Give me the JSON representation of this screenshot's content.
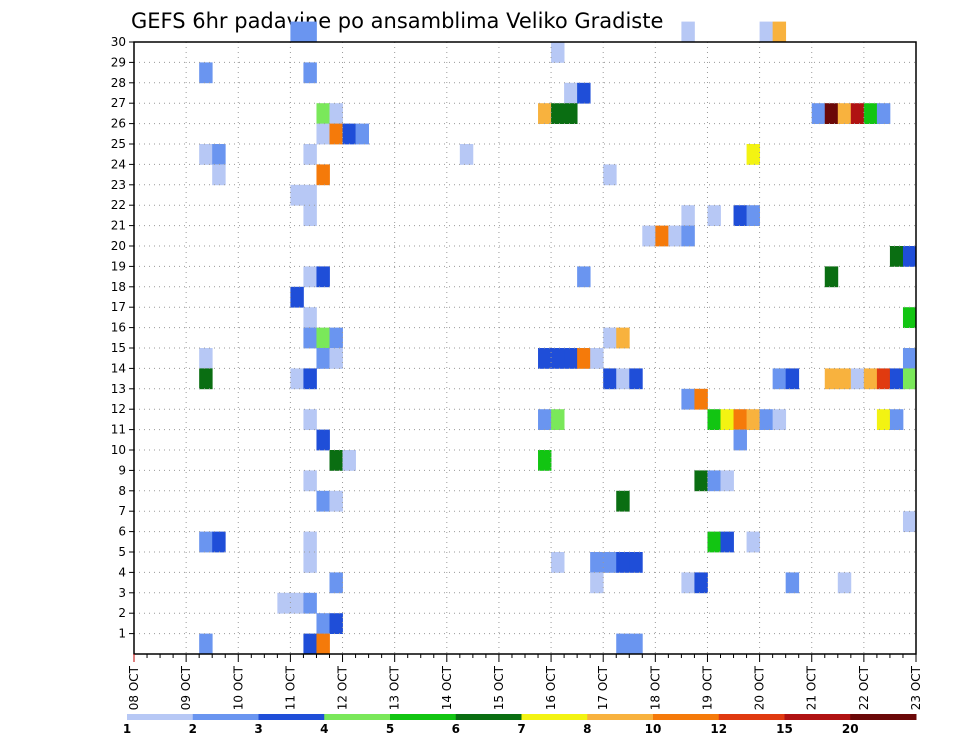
{
  "chart_data": {
    "type": "heatmap",
    "title": "GEFS 6hr padavine po ansamblima Veliko Gradiste",
    "xlabel": "",
    "ylabel": "",
    "x_ticks": [
      "08 OCT",
      "09 OCT",
      "10 OCT",
      "11 OCT",
      "12 OCT",
      "13 OCT",
      "14 OCT",
      "15 OCT",
      "16 OCT",
      "17 OCT",
      "18 OCT",
      "19 OCT",
      "20 OCT",
      "21 OCT",
      "22 OCT",
      "23 OCT"
    ],
    "y_ticks": [
      "1",
      "2",
      "3",
      "4",
      "5",
      "6",
      "7",
      "8",
      "9",
      "10",
      "11",
      "12",
      "13",
      "14",
      "15",
      "16",
      "17",
      "18",
      "19",
      "20",
      "21",
      "22",
      "23",
      "24",
      "25",
      "26",
      "27",
      "28",
      "29",
      "30"
    ],
    "xlim": [
      0,
      60
    ],
    "ylim": [
      0,
      30
    ],
    "grid": true,
    "legend_position": "bottom",
    "levels": [
      {
        "label": "1",
        "color": "#b7c8f5"
      },
      {
        "label": "2",
        "color": "#6a95f0"
      },
      {
        "label": "3",
        "color": "#1f4ed8"
      },
      {
        "label": "4",
        "color": "#7ae85a"
      },
      {
        "label": "5",
        "color": "#12c512"
      },
      {
        "label": "6",
        "color": "#0a6e12"
      },
      {
        "label": "7",
        "color": "#f3f312"
      },
      {
        "label": "8",
        "color": "#f8b23e"
      },
      {
        "label": "10",
        "color": "#f57a0a"
      },
      {
        "label": "12",
        "color": "#e03a10"
      },
      {
        "label": "15",
        "color": "#b01212"
      },
      {
        "label": "20",
        "color": "#6b0808"
      }
    ],
    "cells": [
      [
        12,
        30,
        1
      ],
      [
        13,
        30,
        1
      ],
      [
        42,
        30,
        0
      ],
      [
        48,
        30,
        0
      ],
      [
        49,
        30,
        7
      ],
      [
        32,
        29,
        0
      ],
      [
        5,
        28,
        1
      ],
      [
        13,
        28,
        1
      ],
      [
        33,
        27,
        0
      ],
      [
        34,
        27,
        2
      ],
      [
        14,
        26,
        3
      ],
      [
        15,
        26,
        0
      ],
      [
        31,
        26,
        7
      ],
      [
        32,
        26,
        5
      ],
      [
        33,
        26,
        5
      ],
      [
        52,
        26,
        1
      ],
      [
        53,
        26,
        11
      ],
      [
        54,
        26,
        7
      ],
      [
        55,
        26,
        10
      ],
      [
        56,
        26,
        4
      ],
      [
        57,
        26,
        1
      ],
      [
        14,
        25,
        0
      ],
      [
        15,
        25,
        8
      ],
      [
        16,
        25,
        2
      ],
      [
        17,
        25,
        1
      ],
      [
        5,
        24,
        0
      ],
      [
        6,
        24,
        1
      ],
      [
        13,
        24,
        0
      ],
      [
        25,
        24,
        0
      ],
      [
        47,
        24,
        6
      ],
      [
        6,
        23,
        0
      ],
      [
        14,
        23,
        8
      ],
      [
        36,
        23,
        0
      ],
      [
        12,
        22,
        0
      ],
      [
        13,
        22,
        0
      ],
      [
        13,
        21,
        0
      ],
      [
        42,
        21,
        0
      ],
      [
        44,
        21,
        0
      ],
      [
        46,
        21,
        2
      ],
      [
        47,
        21,
        1
      ],
      [
        39,
        20,
        0
      ],
      [
        40,
        20,
        8
      ],
      [
        41,
        20,
        0
      ],
      [
        42,
        20,
        1
      ],
      [
        58,
        19,
        5
      ],
      [
        59,
        19,
        2
      ],
      [
        13,
        18,
        0
      ],
      [
        14,
        18,
        2
      ],
      [
        34,
        18,
        1
      ],
      [
        53,
        18,
        5
      ],
      [
        12,
        17,
        2
      ],
      [
        13,
        16,
        0
      ],
      [
        59,
        16,
        4
      ],
      [
        13,
        15,
        1
      ],
      [
        14,
        15,
        3
      ],
      [
        15,
        15,
        1
      ],
      [
        36,
        15,
        0
      ],
      [
        37,
        15,
        7
      ],
      [
        5,
        14,
        0
      ],
      [
        14,
        14,
        1
      ],
      [
        15,
        14,
        0
      ],
      [
        31,
        14,
        2
      ],
      [
        32,
        14,
        2
      ],
      [
        33,
        14,
        2
      ],
      [
        34,
        14,
        8
      ],
      [
        35,
        14,
        0
      ],
      [
        59,
        14,
        1
      ],
      [
        5,
        13,
        5
      ],
      [
        12,
        13,
        0
      ],
      [
        13,
        13,
        2
      ],
      [
        36,
        13,
        2
      ],
      [
        37,
        13,
        0
      ],
      [
        38,
        13,
        2
      ],
      [
        49,
        13,
        1
      ],
      [
        50,
        13,
        2
      ],
      [
        53,
        13,
        7
      ],
      [
        54,
        13,
        7
      ],
      [
        55,
        13,
        0
      ],
      [
        56,
        13,
        7
      ],
      [
        57,
        13,
        9
      ],
      [
        58,
        13,
        2
      ],
      [
        59,
        13,
        3
      ],
      [
        42,
        12,
        1
      ],
      [
        43,
        12,
        8
      ],
      [
        13,
        11,
        0
      ],
      [
        31,
        11,
        1
      ],
      [
        32,
        11,
        3
      ],
      [
        44,
        11,
        4
      ],
      [
        45,
        11,
        6
      ],
      [
        46,
        11,
        8
      ],
      [
        47,
        11,
        7
      ],
      [
        48,
        11,
        1
      ],
      [
        49,
        11,
        0
      ],
      [
        57,
        11,
        6
      ],
      [
        58,
        11,
        1
      ],
      [
        14,
        10,
        2
      ],
      [
        46,
        10,
        1
      ],
      [
        15,
        9,
        5
      ],
      [
        16,
        9,
        0
      ],
      [
        31,
        9,
        4
      ],
      [
        13,
        8,
        0
      ],
      [
        43,
        8,
        5
      ],
      [
        44,
        8,
        1
      ],
      [
        45,
        8,
        0
      ],
      [
        14,
        7,
        1
      ],
      [
        15,
        7,
        0
      ],
      [
        37,
        7,
        5
      ],
      [
        59,
        6,
        0
      ],
      [
        5,
        5,
        1
      ],
      [
        6,
        5,
        2
      ],
      [
        13,
        5,
        0
      ],
      [
        44,
        5,
        4
      ],
      [
        45,
        5,
        2
      ],
      [
        47,
        5,
        0
      ],
      [
        13,
        4,
        0
      ],
      [
        32,
        4,
        0
      ],
      [
        35,
        4,
        1
      ],
      [
        36,
        4,
        1
      ],
      [
        37,
        4,
        2
      ],
      [
        38,
        4,
        2
      ],
      [
        15,
        3,
        1
      ],
      [
        35,
        3,
        0
      ],
      [
        42,
        3,
        0
      ],
      [
        43,
        3,
        2
      ],
      [
        50,
        3,
        1
      ],
      [
        54,
        3,
        0
      ],
      [
        11,
        2,
        0
      ],
      [
        12,
        2,
        0
      ],
      [
        13,
        2,
        1
      ],
      [
        14,
        1,
        1
      ],
      [
        15,
        1,
        2
      ],
      [
        5,
        0,
        1
      ],
      [
        13,
        0,
        2
      ],
      [
        14,
        0,
        8
      ],
      [
        37,
        0,
        1
      ],
      [
        38,
        0,
        1
      ]
    ]
  }
}
